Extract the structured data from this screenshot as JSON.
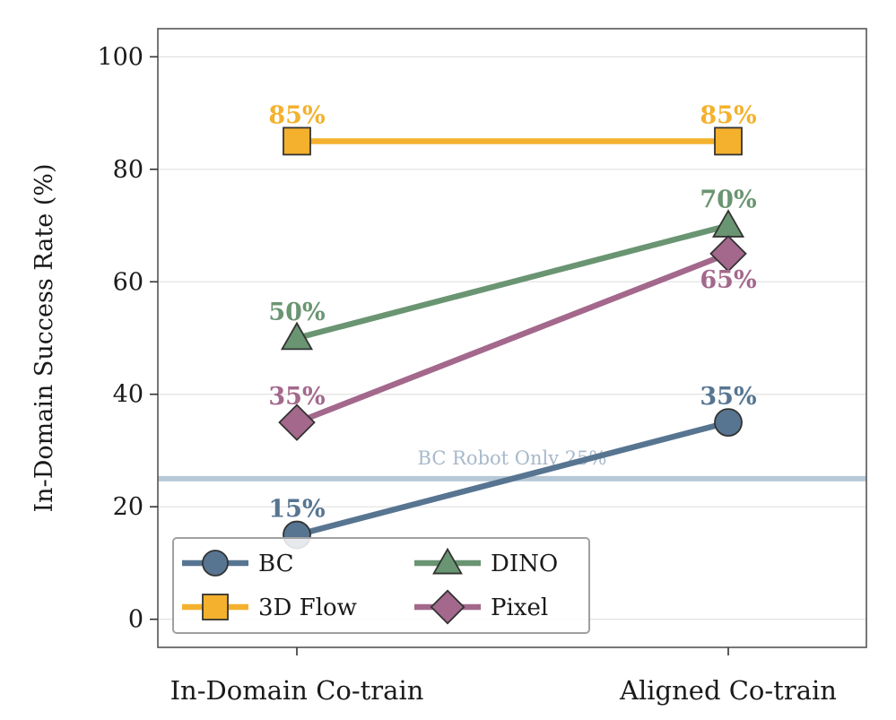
{
  "chart_data": {
    "type": "line",
    "title": "",
    "xlabel": "",
    "ylabel": "In-Domain Success Rate (%)",
    "categories": [
      "In-Domain Co-train",
      "Aligned Co-train"
    ],
    "ylim": [
      -5,
      105
    ],
    "yticks": [
      0,
      20,
      40,
      60,
      80,
      100
    ],
    "grid": "horizontal",
    "legend_location": "lower-left",
    "legend_columns": 2,
    "series": [
      {
        "name": "BC",
        "values": [
          15,
          35
        ],
        "labels": [
          "15%",
          "35%"
        ],
        "color": "#577591",
        "marker": "circle"
      },
      {
        "name": "3D Flow",
        "values": [
          85,
          85
        ],
        "labels": [
          "85%",
          "85%"
        ],
        "color": "#F4B12D",
        "marker": "square"
      },
      {
        "name": "DINO",
        "values": [
          50,
          70
        ],
        "labels": [
          "50%",
          "70%"
        ],
        "color": "#6A9572",
        "marker": "triangle"
      },
      {
        "name": "Pixel",
        "values": [
          35,
          65
        ],
        "labels": [
          "35%",
          "65%"
        ],
        "color": "#A3688C",
        "marker": "diamond"
      }
    ],
    "reference_line": {
      "value": 25,
      "label": "BC Robot Only 25%",
      "color": "#B7C8D7",
      "text_color": "#A7B9CA"
    }
  }
}
